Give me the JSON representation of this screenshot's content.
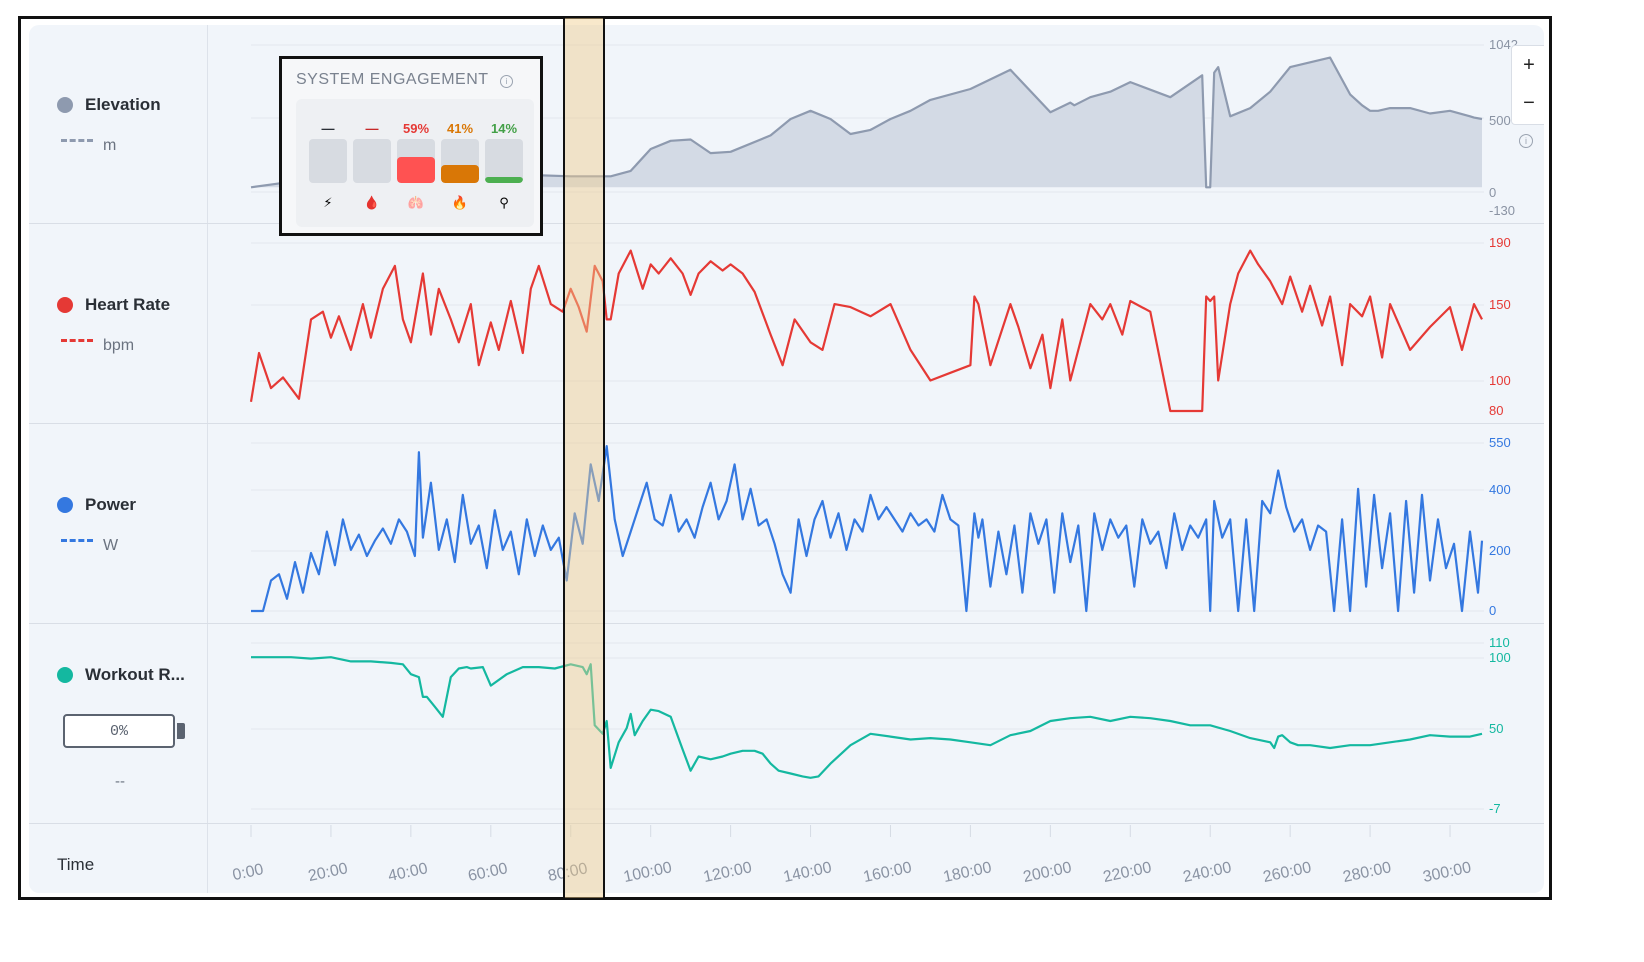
{
  "rows": {
    "elevation": {
      "name": "Elevation",
      "unit": "m",
      "color": "#8e9aaf"
    },
    "heart_rate": {
      "name": "Heart Rate",
      "unit": "bpm",
      "color": "#e53935"
    },
    "power": {
      "name": "Power",
      "unit": "W",
      "color": "#3478e0"
    },
    "workout": {
      "name": "Workout R...",
      "battery_value": "0%",
      "sub": "--",
      "color": "#14b8a0"
    }
  },
  "time_label": "Time",
  "zoom": {
    "plus": "+",
    "minus": "−"
  },
  "engagement": {
    "title": "SYSTEM ENGAGEMENT",
    "info": "i",
    "items": [
      {
        "value": "—",
        "level": 0,
        "color": "#d7dbe1",
        "value_color": "#2a2f36",
        "icon": "⚡",
        "icon_name": "lightning-icon"
      },
      {
        "value": "—",
        "level": 0,
        "color": "#d7dbe1",
        "value_color": "#c62828",
        "icon": "🩸",
        "icon_name": "blood-drop-icon"
      },
      {
        "value": "59%",
        "level": 0.59,
        "color": "#ff5252",
        "value_color": "#e53935",
        "icon": "🫁",
        "icon_name": "lungs-icon"
      },
      {
        "value": "41%",
        "level": 0.41,
        "color": "#d97706",
        "value_color": "#d97706",
        "icon": "🔥",
        "icon_name": "fire-icon"
      },
      {
        "value": "14%",
        "level": 0.14,
        "color": "#4caf50",
        "value_color": "#43a047",
        "icon": "⚲",
        "icon_name": "molecule-icon"
      }
    ]
  },
  "axes": {
    "elevation_ticks": [
      "1042",
      "500",
      "0",
      "-130"
    ],
    "heart_rate_ticks": [
      "190",
      "150",
      "100",
      "80"
    ],
    "power_ticks": [
      "550",
      "400",
      "200",
      "0"
    ],
    "workout_ticks": [
      "110",
      "100",
      "50",
      "-7"
    ],
    "time_ticks": [
      "0:00",
      "20:00",
      "40:00",
      "60:00",
      "80:00",
      "100:00",
      "120:00",
      "140:00",
      "160:00",
      "180:00",
      "200:00",
      "220:00",
      "240:00",
      "260:00",
      "280:00",
      "300:00"
    ]
  },
  "chart_data": [
    {
      "type": "area",
      "title": "",
      "ylabel": "Elevation (m)",
      "ylim": [
        -130,
        1042
      ],
      "x_minutes": [
        0,
        10,
        20,
        30,
        40,
        50,
        60,
        70,
        80,
        85,
        88,
        90,
        95,
        100,
        105,
        110,
        115,
        120,
        130,
        135,
        140,
        145,
        150,
        155,
        160,
        165,
        170,
        180,
        190,
        200,
        205,
        206,
        210,
        215,
        220,
        230,
        238,
        239,
        240,
        241,
        242,
        245,
        250,
        255,
        260,
        270,
        275,
        278,
        280,
        282,
        285,
        290,
        295,
        300,
        305,
        306,
        308
      ],
      "values": [
        0,
        40,
        60,
        60,
        80,
        80,
        80,
        90,
        80,
        80,
        80,
        80,
        120,
        280,
        340,
        350,
        250,
        260,
        380,
        500,
        560,
        500,
        390,
        420,
        500,
        560,
        640,
        720,
        860,
        550,
        620,
        600,
        660,
        700,
        770,
        660,
        820,
        0,
        0,
        840,
        880,
        520,
        580,
        700,
        880,
        950,
        680,
        600,
        560,
        560,
        580,
        580,
        540,
        560,
        520,
        510,
        500
      ]
    },
    {
      "type": "line",
      "title": "",
      "ylabel": "Heart Rate (bpm)",
      "ylim": [
        80,
        190
      ],
      "x_minutes": [
        0,
        2,
        5,
        8,
        12,
        15,
        18,
        20,
        22,
        25,
        28,
        30,
        33,
        36,
        38,
        40,
        43,
        45,
        47,
        50,
        52,
        55,
        57,
        60,
        62,
        65,
        68,
        70,
        72,
        75,
        78,
        80,
        82,
        84,
        86,
        88,
        89,
        90,
        92,
        95,
        98,
        100,
        102,
        105,
        108,
        110,
        112,
        115,
        118,
        120,
        123,
        126,
        130,
        133,
        136,
        140,
        143,
        146,
        150,
        155,
        160,
        165,
        170,
        175,
        180,
        181,
        182,
        185,
        190,
        192,
        195,
        198,
        200,
        203,
        205,
        207,
        210,
        213,
        215,
        218,
        220,
        225,
        230,
        238,
        239,
        240,
        241,
        242,
        245,
        247,
        250,
        252,
        255,
        258,
        260,
        263,
        265,
        268,
        270,
        273,
        275,
        278,
        280,
        283,
        285,
        290,
        295,
        300,
        303,
        306,
        308
      ],
      "values": [
        86,
        118,
        95,
        102,
        88,
        140,
        145,
        128,
        142,
        120,
        150,
        128,
        160,
        175,
        140,
        125,
        170,
        130,
        160,
        140,
        125,
        150,
        110,
        138,
        120,
        152,
        118,
        160,
        175,
        150,
        145,
        160,
        148,
        132,
        175,
        165,
        140,
        140,
        170,
        185,
        160,
        176,
        170,
        180,
        170,
        156,
        170,
        178,
        172,
        176,
        170,
        158,
        130,
        110,
        140,
        125,
        120,
        150,
        148,
        142,
        150,
        120,
        100,
        105,
        110,
        155,
        150,
        110,
        150,
        135,
        108,
        130,
        95,
        140,
        100,
        120,
        150,
        140,
        150,
        130,
        152,
        145,
        80,
        80,
        155,
        152,
        155,
        100,
        150,
        170,
        185,
        176,
        165,
        150,
        168,
        145,
        162,
        136,
        155,
        110,
        150,
        142,
        155,
        115,
        150,
        120,
        135,
        148,
        120,
        150,
        140
      ]
    },
    {
      "type": "line",
      "title": "",
      "ylabel": "Power (W)",
      "ylim": [
        0,
        550
      ],
      "x_minutes": [
        0,
        3,
        5,
        7,
        9,
        11,
        13,
        15,
        17,
        19,
        21,
        23,
        25,
        27,
        29,
        31,
        33,
        35,
        37,
        39,
        41,
        42,
        43,
        45,
        47,
        49,
        51,
        53,
        55,
        57,
        59,
        61,
        63,
        65,
        67,
        69,
        71,
        73,
        75,
        77,
        79,
        81,
        83,
        85,
        87,
        89,
        91,
        93,
        95,
        97,
        99,
        101,
        103,
        105,
        107,
        109,
        111,
        113,
        115,
        117,
        119,
        121,
        123,
        125,
        127,
        129,
        131,
        133,
        135,
        137,
        139,
        141,
        143,
        145,
        147,
        149,
        151,
        153,
        155,
        157,
        159,
        161,
        163,
        165,
        167,
        169,
        171,
        173,
        175,
        177,
        179,
        181,
        182,
        183,
        185,
        187,
        189,
        191,
        193,
        195,
        197,
        199,
        201,
        203,
        205,
        207,
        209,
        211,
        213,
        215,
        217,
        219,
        221,
        223,
        225,
        227,
        229,
        231,
        233,
        235,
        237,
        239,
        240,
        241,
        243,
        245,
        247,
        249,
        251,
        253,
        255,
        257,
        259,
        261,
        263,
        265,
        267,
        269,
        271,
        273,
        275,
        277,
        279,
        281,
        283,
        285,
        287,
        289,
        291,
        293,
        295,
        297,
        299,
        301,
        303,
        305,
        307,
        308
      ],
      "values": [
        0,
        0,
        100,
        120,
        40,
        160,
        60,
        190,
        120,
        260,
        150,
        300,
        200,
        250,
        180,
        230,
        270,
        220,
        300,
        260,
        180,
        520,
        240,
        420,
        200,
        300,
        160,
        380,
        220,
        280,
        140,
        330,
        200,
        260,
        120,
        300,
        180,
        280,
        200,
        240,
        100,
        320,
        220,
        480,
        360,
        540,
        300,
        180,
        260,
        340,
        420,
        300,
        280,
        380,
        260,
        300,
        240,
        340,
        420,
        300,
        360,
        480,
        300,
        400,
        280,
        300,
        220,
        120,
        60,
        300,
        180,
        300,
        360,
        240,
        320,
        200,
        300,
        260,
        380,
        300,
        340,
        300,
        260,
        320,
        280,
        300,
        260,
        380,
        300,
        280,
        0,
        320,
        240,
        300,
        80,
        260,
        120,
        280,
        60,
        320,
        220,
        300,
        60,
        320,
        160,
        280,
        0,
        320,
        200,
        300,
        240,
        280,
        80,
        300,
        220,
        260,
        140,
        320,
        200,
        280,
        240,
        300,
        0,
        360,
        240,
        300,
        0,
        300,
        0,
        360,
        320,
        460,
        340,
        260,
        300,
        200,
        280,
        260,
        0,
        300,
        0,
        400,
        80,
        380,
        140,
        320,
        0,
        360,
        60,
        380,
        100,
        300,
        140,
        220,
        0,
        260,
        60,
        230
      ]
    },
    {
      "type": "line",
      "title": "",
      "ylabel": "Workout Reserve",
      "ylim": [
        -7,
        110
      ],
      "x_minutes": [
        0,
        10,
        15,
        20,
        25,
        30,
        35,
        38,
        40,
        42,
        43,
        44,
        46,
        48,
        50,
        52,
        54,
        55,
        58,
        60,
        64,
        68,
        72,
        76,
        80,
        83,
        84,
        85,
        86,
        88,
        89,
        90,
        92,
        94,
        95,
        96,
        97,
        98,
        100,
        102,
        105,
        108,
        110,
        112,
        115,
        118,
        120,
        123,
        126,
        128,
        130,
        132,
        135,
        138,
        140,
        142,
        145,
        150,
        155,
        160,
        165,
        170,
        175,
        180,
        185,
        190,
        195,
        200,
        205,
        210,
        215,
        220,
        225,
        230,
        235,
        240,
        245,
        250,
        255,
        256,
        257,
        258,
        260,
        262,
        265,
        270,
        275,
        280,
        285,
        290,
        295,
        300,
        305,
        308
      ],
      "values": [
        100,
        100,
        99,
        100,
        97,
        97,
        96,
        95,
        88,
        86,
        72,
        72,
        65,
        58,
        86,
        92,
        93,
        92,
        93,
        80,
        88,
        93,
        93,
        92,
        95,
        93,
        88,
        95,
        52,
        46,
        55,
        22,
        40,
        50,
        60,
        45,
        50,
        55,
        63,
        62,
        58,
        35,
        20,
        30,
        28,
        30,
        32,
        34,
        34,
        32,
        25,
        20,
        18,
        16,
        15,
        16,
        25,
        38,
        46,
        44,
        42,
        43,
        42,
        40,
        38,
        45,
        48,
        55,
        57,
        58,
        55,
        58,
        57,
        55,
        52,
        52,
        48,
        43,
        40,
        36,
        44,
        45,
        40,
        38,
        38,
        36,
        38,
        38,
        40,
        42,
        45,
        44,
        44,
        46
      ]
    }
  ]
}
